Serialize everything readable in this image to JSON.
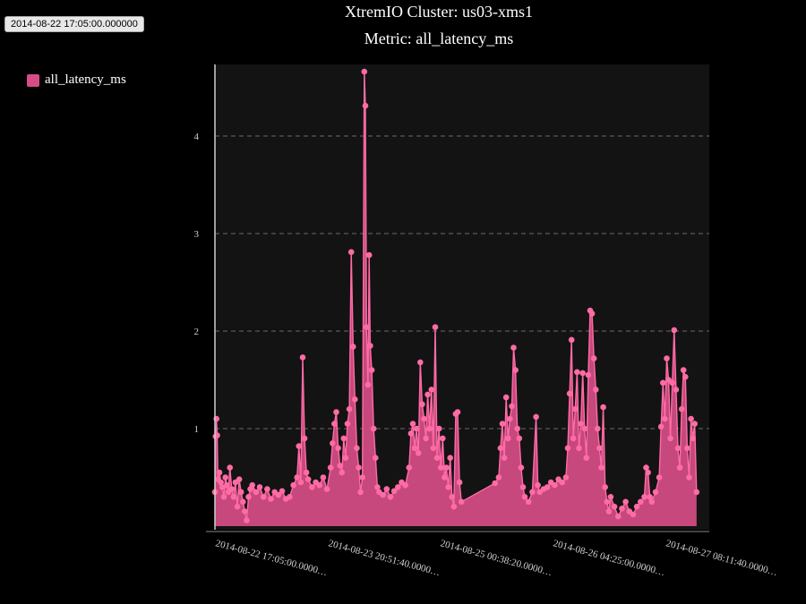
{
  "tooltip": "2014-08-22 17:05:00.000000",
  "title": "XtremIO Cluster: us03-xms1",
  "subtitle": "Metric: all_latency_ms",
  "colors": {
    "fill": "#d64d86",
    "line": "#ff6ba5",
    "plot_bg": "#131313"
  },
  "chart_data": {
    "type": "area",
    "series": [
      {
        "name": "all_latency_ms"
      }
    ],
    "legend_position": "top-left",
    "grid": true,
    "ylim": [
      0,
      4.7
    ],
    "yticks": [
      "1",
      "2",
      "3",
      "4"
    ],
    "xticks": [
      "2014-08-22 17:05:00.0000…",
      "2014-08-23 20:51:40.0000…",
      "2014-08-25 00:38:20.0000…",
      "2014-08-26 04:25:00.0000…",
      "2014-08-27 08:11:40.0000…"
    ],
    "x_unit": "hours since 2014-08-22 17:05",
    "points": [
      [
        0,
        0.35
      ],
      [
        0.2,
        0.92
      ],
      [
        0.4,
        1.1
      ],
      [
        0.6,
        0.93
      ],
      [
        0.8,
        0.48
      ],
      [
        1.2,
        0.55
      ],
      [
        1.6,
        0.45
      ],
      [
        2,
        0.4
      ],
      [
        2.4,
        0.3
      ],
      [
        2.8,
        0.5
      ],
      [
        3.2,
        0.42
      ],
      [
        3.6,
        0.35
      ],
      [
        4,
        0.6
      ],
      [
        4.5,
        0.38
      ],
      [
        5,
        0.3
      ],
      [
        5.5,
        0.45
      ],
      [
        6,
        0.2
      ],
      [
        6.5,
        0.48
      ],
      [
        7,
        0.35
      ],
      [
        7.5,
        0.25
      ],
      [
        8,
        0.15
      ],
      [
        8.5,
        0.06
      ],
      [
        9,
        0.3
      ],
      [
        9.5,
        0.38
      ],
      [
        10,
        0.42
      ],
      [
        11,
        0.35
      ],
      [
        12,
        0.4
      ],
      [
        13,
        0.3
      ],
      [
        14,
        0.38
      ],
      [
        15,
        0.28
      ],
      [
        16,
        0.35
      ],
      [
        17,
        0.32
      ],
      [
        18,
        0.36
      ],
      [
        19,
        0.28
      ],
      [
        20,
        0.3
      ],
      [
        21,
        0.42
      ],
      [
        22,
        0.5
      ],
      [
        22.5,
        0.82
      ],
      [
        23,
        0.45
      ],
      [
        23.5,
        1.73
      ],
      [
        24,
        0.9
      ],
      [
        24.5,
        0.55
      ],
      [
        25,
        0.48
      ],
      [
        26,
        0.4
      ],
      [
        27,
        0.45
      ],
      [
        28,
        0.42
      ],
      [
        29,
        0.5
      ],
      [
        30,
        0.38
      ],
      [
        31,
        0.6
      ],
      [
        31.5,
        0.85
      ],
      [
        32,
        1.05
      ],
      [
        32.5,
        1.17
      ],
      [
        33,
        0.8
      ],
      [
        33.5,
        0.62
      ],
      [
        34,
        0.55
      ],
      [
        34.5,
        0.9
      ],
      [
        35,
        0.7
      ],
      [
        35.5,
        1.05
      ],
      [
        36,
        1.2
      ],
      [
        36.5,
        2.81
      ],
      [
        37,
        1.84
      ],
      [
        37.5,
        1.3
      ],
      [
        38,
        0.8
      ],
      [
        38.5,
        0.6
      ],
      [
        39,
        0.35
      ],
      [
        39.5,
        0.5
      ],
      [
        40,
        4.66
      ],
      [
        40.3,
        4.31
      ],
      [
        40.6,
        2.04
      ],
      [
        41,
        1.45
      ],
      [
        41.3,
        2.78
      ],
      [
        41.6,
        1.85
      ],
      [
        42,
        1.6
      ],
      [
        42.5,
        1.0
      ],
      [
        43,
        0.7
      ],
      [
        43.5,
        0.4
      ],
      [
        44,
        0.35
      ],
      [
        45,
        0.32
      ],
      [
        46,
        0.38
      ],
      [
        47,
        0.3
      ],
      [
        48,
        0.36
      ],
      [
        49,
        0.4
      ],
      [
        50,
        0.45
      ],
      [
        51,
        0.42
      ],
      [
        52,
        0.6
      ],
      [
        52.5,
        0.95
      ],
      [
        53,
        1.05
      ],
      [
        53.5,
        0.8
      ],
      [
        54,
        1.0
      ],
      [
        54.5,
        0.75
      ],
      [
        55,
        1.68
      ],
      [
        55.5,
        1.25
      ],
      [
        56,
        1.1
      ],
      [
        56.5,
        0.9
      ],
      [
        57,
        1.35
      ],
      [
        57.5,
        1.0
      ],
      [
        58,
        1.4
      ],
      [
        58.5,
        0.8
      ],
      [
        59,
        2.04
      ],
      [
        59.5,
        0.7
      ],
      [
        60,
        1.0
      ],
      [
        60.5,
        0.6
      ],
      [
        61,
        0.9
      ],
      [
        61.5,
        0.5
      ],
      [
        62,
        0.6
      ],
      [
        62.5,
        0.4
      ],
      [
        63,
        0.7
      ],
      [
        63.5,
        0.3
      ],
      [
        64,
        0.2
      ],
      [
        64.5,
        1.15
      ],
      [
        65,
        1.17
      ],
      [
        65.5,
        0.45
      ],
      [
        66,
        0.25
      ],
      [
        75,
        0.44
      ],
      [
        76,
        0.5
      ],
      [
        76.5,
        0.8
      ],
      [
        77,
        1.05
      ],
      [
        77.5,
        0.7
      ],
      [
        78,
        1.32
      ],
      [
        78.5,
        0.9
      ],
      [
        79,
        1.1
      ],
      [
        79.5,
        1.23
      ],
      [
        80,
        1.83
      ],
      [
        80.5,
        1.6
      ],
      [
        81,
        1.0
      ],
      [
        81.5,
        0.9
      ],
      [
        82,
        0.6
      ],
      [
        82.5,
        0.4
      ],
      [
        83,
        0.3
      ],
      [
        84,
        0.25
      ],
      [
        85,
        0.35
      ],
      [
        86,
        1.12
      ],
      [
        86.5,
        0.42
      ],
      [
        87,
        0.35
      ],
      [
        88,
        0.38
      ],
      [
        89,
        0.4
      ],
      [
        90,
        0.45
      ],
      [
        91,
        0.42
      ],
      [
        92,
        0.48
      ],
      [
        93,
        0.45
      ],
      [
        94,
        0.5
      ],
      [
        94.5,
        0.8
      ],
      [
        95,
        1.36
      ],
      [
        95.5,
        1.91
      ],
      [
        96,
        0.9
      ],
      [
        96.5,
        1.2
      ],
      [
        97,
        1.58
      ],
      [
        97.5,
        0.8
      ],
      [
        98,
        1.05
      ],
      [
        98.5,
        1.57
      ],
      [
        99,
        1.0
      ],
      [
        99.5,
        0.7
      ],
      [
        100,
        1.55
      ],
      [
        100.5,
        2.21
      ],
      [
        101,
        2.18
      ],
      [
        101.5,
        1.72
      ],
      [
        102,
        1.4
      ],
      [
        102.5,
        1.0
      ],
      [
        103,
        0.8
      ],
      [
        103.5,
        0.6
      ],
      [
        104,
        1.22
      ],
      [
        104.5,
        0.4
      ],
      [
        105,
        0.25
      ],
      [
        105.5,
        0.15
      ],
      [
        106,
        0.3
      ],
      [
        107,
        0.2
      ],
      [
        108,
        0.1
      ],
      [
        109,
        0.18
      ],
      [
        110,
        0.25
      ],
      [
        111,
        0.15
      ],
      [
        112,
        0.12
      ],
      [
        113,
        0.2
      ],
      [
        114,
        0.25
      ],
      [
        115,
        0.3
      ],
      [
        115.5,
        0.6
      ],
      [
        116,
        0.55
      ],
      [
        116.5,
        0.3
      ],
      [
        117,
        0.25
      ],
      [
        118,
        0.35
      ],
      [
        119,
        0.5
      ],
      [
        119.5,
        1.02
      ],
      [
        120,
        1.47
      ],
      [
        120.5,
        1.1
      ],
      [
        121,
        1.72
      ],
      [
        121.5,
        1.5
      ],
      [
        122,
        0.9
      ],
      [
        122.5,
        1.47
      ],
      [
        123,
        2.01
      ],
      [
        123.5,
        1.4
      ],
      [
        124,
        0.8
      ],
      [
        124.5,
        0.6
      ],
      [
        125,
        1.2
      ],
      [
        125.5,
        1.6
      ],
      [
        126,
        1.53
      ],
      [
        126.5,
        0.8
      ],
      [
        127,
        0.5
      ],
      [
        127.5,
        1.1
      ],
      [
        128,
        0.9
      ],
      [
        128.5,
        1.05
      ],
      [
        129,
        0.35
      ]
    ]
  }
}
